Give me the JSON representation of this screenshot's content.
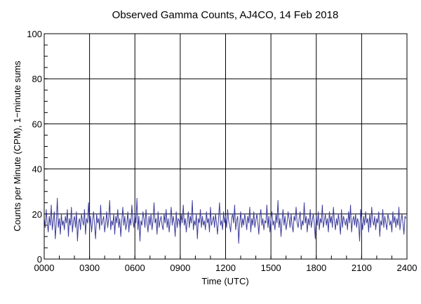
{
  "chart_data": {
    "type": "line",
    "title": "Observed Gamma Counts, AJ4CO, 14 Feb 2018",
    "xlabel": "Time (UTC)",
    "ylabel": "Counts per Minute (CPM), 1−minute sums",
    "xlim": [
      0,
      2400
    ],
    "ylim": [
      0,
      100
    ],
    "x_tick_labels": [
      "0000",
      "0300",
      "0600",
      "0900",
      "1200",
      "1500",
      "1800",
      "2100",
      "2400"
    ],
    "y_tick_labels": [
      "0",
      "20",
      "40",
      "60",
      "80",
      "100"
    ],
    "grid": true,
    "line_color": "#3c3c9c",
    "sample_interval_minutes": 4,
    "series": [
      {
        "values": [
          18,
          14,
          22,
          16,
          12,
          19,
          15,
          24,
          13,
          17,
          21,
          9,
          16,
          27,
          14,
          18,
          11,
          20,
          15,
          17,
          13,
          19,
          16,
          22,
          10,
          18,
          15,
          23,
          12,
          17,
          19,
          14,
          21,
          8,
          16,
          18,
          13,
          20,
          17,
          15,
          22,
          11,
          18,
          16,
          25,
          14,
          19,
          12,
          17,
          21,
          15,
          9,
          20,
          16,
          18,
          13,
          24,
          15,
          17,
          19,
          12,
          16,
          21,
          14,
          18,
          26,
          13,
          17,
          15,
          20,
          11,
          19,
          16,
          22,
          14,
          18,
          10,
          17,
          23,
          15,
          19,
          13,
          16,
          21,
          12,
          18,
          15,
          24,
          17,
          14,
          20,
          16,
          27,
          13,
          19,
          8,
          17,
          15,
          21,
          18,
          14,
          22,
          16,
          12,
          19,
          15,
          20,
          13,
          17,
          25,
          16,
          18,
          11,
          21,
          14,
          17,
          19,
          15,
          13,
          20,
          16,
          22,
          14,
          18,
          12,
          17,
          23,
          15,
          19,
          16,
          10,
          21,
          14,
          18,
          17,
          13,
          20,
          16,
          24,
          15,
          18,
          12,
          17,
          21,
          14,
          19,
          16,
          26,
          13,
          17,
          15,
          20,
          9,
          18,
          16,
          22,
          14,
          19,
          15,
          17,
          13,
          21,
          16,
          18,
          12,
          23,
          15,
          17,
          19,
          14,
          20,
          16,
          11,
          18,
          25,
          15,
          17,
          13,
          21,
          16,
          19,
          14,
          22,
          17,
          15,
          12,
          18,
          20,
          16,
          24,
          13,
          17,
          19,
          7,
          16,
          21,
          14,
          18,
          15,
          20,
          17,
          13,
          19,
          16,
          23,
          12,
          18,
          15,
          21,
          14,
          17,
          20,
          16,
          11,
          19,
          22,
          15,
          18,
          13,
          17,
          16,
          24,
          14,
          19,
          12,
          18,
          21,
          15,
          17,
          13,
          20,
          16,
          26,
          14,
          18,
          10,
          17,
          22,
          15,
          19,
          13,
          16,
          21,
          18,
          14,
          20,
          15,
          12,
          19,
          17,
          23,
          16,
          14,
          18,
          21,
          13,
          17,
          15,
          25,
          16,
          19,
          12,
          18,
          15,
          22,
          14,
          17,
          20,
          16,
          9,
          19,
          15,
          21,
          13,
          18,
          16,
          24,
          14,
          17,
          20,
          15,
          18,
          12,
          21,
          16,
          19,
          14,
          23,
          17,
          13,
          18,
          15,
          20,
          16,
          11,
          22,
          14,
          19,
          17,
          15,
          18,
          13,
          21,
          16,
          24,
          12,
          17,
          19,
          15,
          20,
          14,
          18,
          16,
          8,
          22,
          17,
          13,
          19,
          15,
          21,
          16,
          18,
          12,
          20,
          14,
          23,
          17,
          15,
          19,
          13,
          18,
          16,
          21,
          10,
          17,
          15,
          22,
          14,
          19,
          16,
          13,
          20,
          18,
          15,
          17,
          12,
          21,
          16,
          19,
          14,
          18,
          15,
          23,
          13,
          17,
          20,
          16,
          11,
          19,
          18
        ]
      }
    ]
  }
}
